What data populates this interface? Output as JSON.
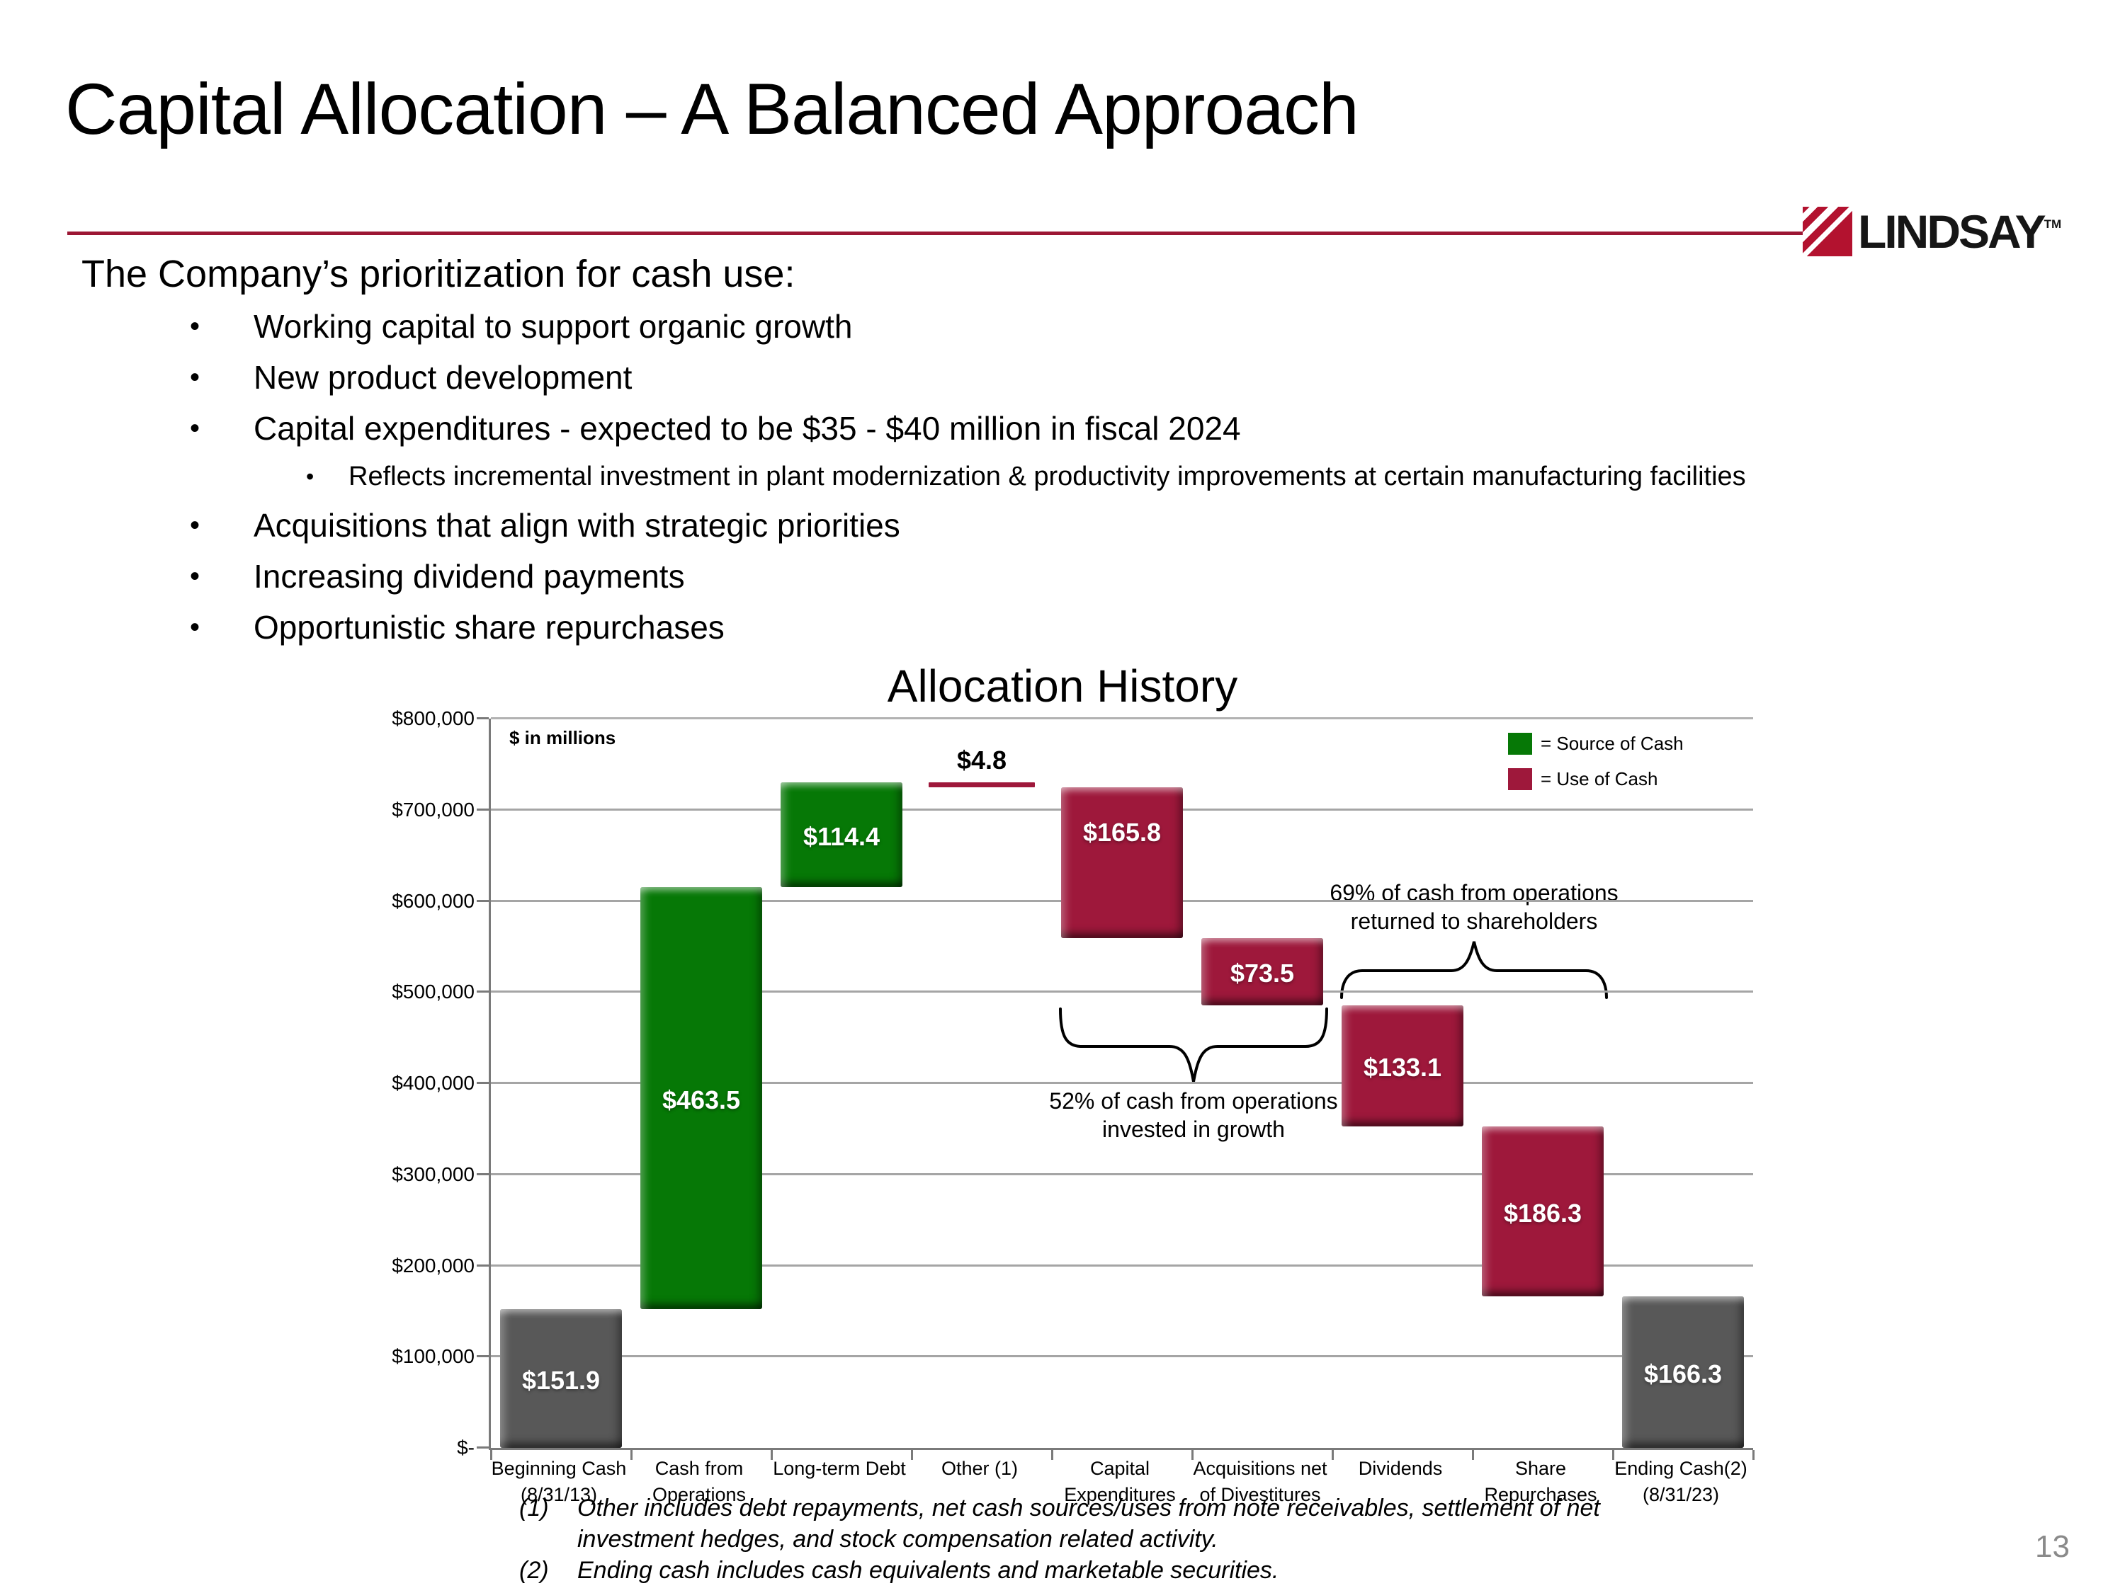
{
  "slide": {
    "title": "Capital Allocation – A Balanced Approach",
    "intro": "The Company’s prioritization for cash use:",
    "bullets": [
      {
        "level": 1,
        "text": "Working capital to support organic growth"
      },
      {
        "level": 1,
        "text": "New product development"
      },
      {
        "level": 1,
        "text": "Capital expenditures - expected to be $35 - $40 million in fiscal 2024"
      },
      {
        "level": 2,
        "text": "Reflects incremental investment in plant modernization & productivity improvements at certain manufacturing facilities"
      },
      {
        "level": 1,
        "text": "Acquisitions that align with strategic priorities"
      },
      {
        "level": 1,
        "text": "Increasing dividend payments"
      },
      {
        "level": 1,
        "text": "Opportunistic share repurchases"
      }
    ],
    "logo": {
      "text": "LINDSAY",
      "tm": "TM"
    },
    "page_number": "13"
  },
  "chart_data": {
    "type": "bar",
    "subtype": "waterfall",
    "title": "Allocation History",
    "units_note": "$ in millions",
    "ylim": [
      0,
      800000
    ],
    "y_tick_step": 100000,
    "y_tick_labels": [
      "$-",
      "$100,000",
      "$200,000",
      "$300,000",
      "$400,000",
      "$500,000",
      "$600,000",
      "$700,000",
      "$800,000"
    ],
    "grid": true,
    "legend_position": "top-right-inside",
    "legend": [
      {
        "key": "source",
        "label": "= Source of Cash"
      },
      {
        "key": "use",
        "label": "= Use of Cash"
      }
    ],
    "colors": {
      "source": "#067806",
      "use": "#9e183b",
      "neutral": "#585858"
    },
    "categories": [
      [
        "Beginning Cash",
        "(8/31/13)"
      ],
      [
        "Cash from",
        "Operations"
      ],
      [
        "Long-term Debt"
      ],
      [
        "Other (1)"
      ],
      [
        "Capital",
        "Expenditures"
      ],
      [
        "Acquisitions net",
        "of Divestitures"
      ],
      [
        "Dividends"
      ],
      [
        "Share",
        "Repurchases"
      ],
      [
        "Ending Cash(2)",
        "(8/31/23)"
      ]
    ],
    "bars": [
      {
        "category": "Beginning Cash (8/31/13)",
        "kind": "neutral",
        "from": 0,
        "to": 151900,
        "value": 151.9,
        "value_label": "$151.9"
      },
      {
        "category": "Cash from Operations",
        "kind": "source",
        "from": 151900,
        "to": 615400,
        "value": 463.5,
        "value_label": "$463.5"
      },
      {
        "category": "Long-term Debt",
        "kind": "source",
        "from": 615400,
        "to": 729800,
        "value": 114.4,
        "value_label": "$114.4"
      },
      {
        "category": "Other (1)",
        "kind": "use",
        "from": 729800,
        "to": 725000,
        "value": 4.8,
        "value_label": "$4.8",
        "style": "thin",
        "label_position": "above"
      },
      {
        "category": "Capital Expenditures",
        "kind": "use",
        "from": 725000,
        "to": 559200,
        "value": 165.8,
        "value_label": "$165.8",
        "label_shift": -45
      },
      {
        "category": "Acquisitions net of Divestitures",
        "kind": "use",
        "from": 559200,
        "to": 485700,
        "value": 73.5,
        "value_label": "$73.5"
      },
      {
        "category": "Dividends",
        "kind": "use",
        "from": 485700,
        "to": 352600,
        "value": 133.1,
        "value_label": "$133.1"
      },
      {
        "category": "Share Repurchases",
        "kind": "use",
        "from": 352600,
        "to": 166300,
        "value": 186.3,
        "value_label": "$186.3"
      },
      {
        "category": "Ending Cash(2) (8/31/23)",
        "kind": "neutral",
        "from": 0,
        "to": 166300,
        "value": 166.3,
        "value_label": "$166.3"
      }
    ],
    "annotations": [
      {
        "id": "growth",
        "lines": [
          "52% of cash from operations",
          "invested in growth"
        ]
      },
      {
        "id": "shareholders",
        "lines": [
          "69% of cash from operations",
          "returned to shareholders"
        ]
      }
    ]
  },
  "footnotes": [
    {
      "marker": "(1)",
      "text": "Other includes debt repayments, net cash sources/uses from note receivables, settlement of net investment hedges, and stock compensation related activity."
    },
    {
      "marker": "(2)",
      "text": "Ending cash includes cash equivalents and marketable securities."
    }
  ]
}
